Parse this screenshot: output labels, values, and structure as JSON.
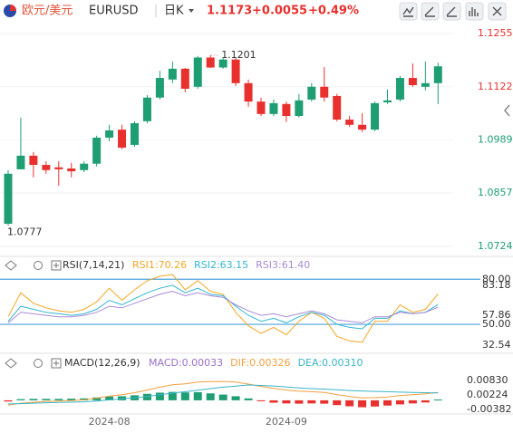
{
  "header": {
    "pair_cn": "欧元/美元",
    "symbol": "EURUSD",
    "period": "日K",
    "price": "1.1173",
    "change": "+0.0055",
    "change_pct": "+0.49%"
  },
  "chart_data": [
    {
      "type": "candlestick",
      "categories": [
        null,
        null,
        null,
        null,
        null,
        null,
        null,
        null,
        "2024-08",
        null,
        null,
        null,
        null,
        null,
        null,
        null,
        null,
        null,
        null,
        null,
        null,
        null,
        "2024-09",
        null,
        null,
        null,
        null,
        null,
        null,
        null,
        null,
        null,
        null,
        null,
        null
      ],
      "open": [
        1.078,
        1.0916,
        1.095,
        1.0927,
        1.0921,
        1.0918,
        1.0914,
        1.093,
        1.0995,
        1.1015,
        1.0977,
        1.1036,
        1.1095,
        1.114,
        1.1167,
        1.1122,
        1.1195,
        1.117,
        1.119,
        1.1131,
        1.1085,
        1.1054,
        1.1079,
        1.1049,
        1.109,
        1.1122,
        1.1099,
        1.104,
        1.1027,
        1.1015,
        1.1083,
        1.109,
        1.1144,
        1.1122,
        1.1131
      ],
      "high": [
        1.0914,
        1.1045,
        1.0959,
        1.0936,
        1.0936,
        1.0932,
        1.0936,
        1.1,
        1.1027,
        1.1027,
        1.1036,
        1.1101,
        1.1162,
        1.1185,
        1.1169,
        1.1199,
        1.1201,
        1.1195,
        1.1196,
        1.114,
        1.1095,
        1.109,
        1.1085,
        1.1104,
        1.1131,
        1.1171,
        1.1104,
        1.1049,
        1.1056,
        1.1085,
        1.1115,
        1.1149,
        1.118,
        1.1185,
        1.1182
      ],
      "low": [
        1.0777,
        1.0916,
        1.0896,
        1.0905,
        1.0875,
        1.0896,
        1.0909,
        1.0923,
        1.0986,
        1.0966,
        1.0972,
        1.1031,
        1.109,
        1.1131,
        1.1108,
        1.1117,
        1.1169,
        1.1167,
        1.1124,
        1.1072,
        1.1049,
        1.1049,
        1.1034,
        1.1045,
        1.1085,
        1.1085,
        1.1036,
        1.1022,
        1.1009,
        1.1011,
        1.1079,
        1.1085,
        1.1122,
        1.1113,
        1.1079
      ],
      "close": [
        1.0905,
        1.095,
        1.0927,
        1.0914,
        1.0916,
        1.0911,
        1.093,
        1.0995,
        1.1013,
        1.097,
        1.1031,
        1.1095,
        1.1144,
        1.1167,
        1.1117,
        1.1195,
        1.117,
        1.119,
        1.1131,
        1.1085,
        1.1054,
        1.1081,
        1.1049,
        1.1088,
        1.1122,
        1.1095,
        1.104,
        1.1027,
        1.1015,
        1.1081,
        1.1088,
        1.1144,
        1.1126,
        1.1131,
        1.1173
      ],
      "up_color": "#1e9e72",
      "down_color": "#e8312f",
      "ylim": [
        1.0701,
        1.1282
      ],
      "yticks": [
        1.1255,
        1.1122,
        1.0989,
        1.0857,
        1.0724
      ],
      "tick_colors": [
        "#e8312f",
        "#e8312f",
        "#1e9e72",
        "#1e9e72",
        "#1e9e72"
      ],
      "grid": true
    },
    {
      "type": "line",
      "title": "RSI(7,14,21)",
      "ylim": [
        32.54,
        83.18
      ],
      "yticks": [
        {
          "value": 80,
          "label": "80.00"
        },
        {
          "value": 50,
          "label": "50.00"
        }
      ],
      "ylabels": [
        57.86
      ],
      "reference_color": "#4aa3df",
      "series": [
        {
          "name": "RSI1:70.26",
          "color": "#f5a623",
          "values": [
            55,
            71,
            64,
            61,
            59,
            58,
            60,
            65,
            74,
            66,
            73,
            79,
            82,
            83.18,
            73,
            79,
            72,
            70,
            58,
            49,
            44,
            48,
            43,
            52,
            58,
            54,
            42,
            39,
            38,
            52,
            52,
            63,
            58,
            60,
            70.26
          ]
        },
        {
          "name": "RSI2:63.15",
          "color": "#33b6d1",
          "values": [
            52,
            62,
            60,
            58,
            57,
            56,
            57,
            60,
            66,
            63,
            67,
            71,
            74,
            76,
            71,
            74,
            70,
            69,
            62,
            56,
            52,
            54,
            51,
            55,
            58,
            56,
            50,
            48,
            47,
            54,
            54,
            59,
            57,
            58,
            63.15
          ]
        },
        {
          "name": "RSI3:61.40",
          "color": "#a98bd6",
          "values": [
            51,
            58,
            57,
            56,
            55,
            55,
            56,
            58,
            62,
            61,
            64,
            67,
            70,
            72,
            69,
            71,
            69,
            68,
            63,
            59,
            56,
            57,
            55,
            57,
            59,
            57,
            53,
            52,
            51,
            55,
            55,
            58,
            57,
            58,
            61.4
          ]
        }
      ]
    },
    {
      "type": "macd",
      "title": "MACD(12,26,9)",
      "ylim": [
        -0.00382,
        0.0083
      ],
      "yticks": [
        {
          "value": 0.0083,
          "label": "0.00830"
        },
        0.00224,
        -0.00382
      ],
      "up_color": "#1e9e72",
      "down_color": "#e8312f",
      "series": [
        {
          "name": "MACD:0.00033",
          "color": "#9b6fc7",
          "style": "bar",
          "values": [
            -0.0005,
            0.0005,
            0.0006,
            0.0006,
            0.0006,
            0.0007,
            0.0008,
            0.0012,
            0.0016,
            0.0017,
            0.0021,
            0.0027,
            0.0032,
            0.0035,
            0.0033,
            0.0034,
            0.0029,
            0.0024,
            0.0017,
            0.0008,
            -0.0004,
            -0.001,
            -0.0013,
            -0.0014,
            -0.0013,
            -0.0014,
            -0.002,
            -0.0025,
            -0.0029,
            -0.0026,
            -0.0022,
            -0.0017,
            -0.0013,
            -0.0009,
            0.00033
          ]
        },
        {
          "name": "DIF:0.00326",
          "color": "#f0a040",
          "style": "line",
          "values": [
            -0.002,
            -0.0012,
            -0.0008,
            -0.0005,
            -0.0003,
            -0.0001,
            0.0002,
            0.0009,
            0.0018,
            0.0023,
            0.0032,
            0.0043,
            0.0055,
            0.0065,
            0.0069,
            0.0076,
            0.0078,
            0.0079,
            0.0076,
            0.0068,
            0.0058,
            0.005,
            0.0043,
            0.0038,
            0.0036,
            0.0033,
            0.0024,
            0.0016,
            0.001,
            0.0011,
            0.0014,
            0.002,
            0.0023,
            0.0027,
            0.00326
          ]
        },
        {
          "name": "DEA:0.00310",
          "color": "#3bb5c8",
          "style": "line",
          "values": [
            -0.0015,
            -0.0014,
            -0.0012,
            -0.001,
            -0.0009,
            -0.0008,
            -0.0006,
            -0.0003,
            0.0002,
            0.0006,
            0.0011,
            0.0016,
            0.0023,
            0.003,
            0.0036,
            0.0042,
            0.0049,
            0.0055,
            0.0059,
            0.0064,
            0.0062,
            0.006,
            0.0056,
            0.0052,
            0.0049,
            0.0047,
            0.0044,
            0.0041,
            0.0039,
            0.0037,
            0.0036,
            0.0034,
            0.0033,
            0.0032,
            0.0031
          ]
        }
      ]
    }
  ]
}
